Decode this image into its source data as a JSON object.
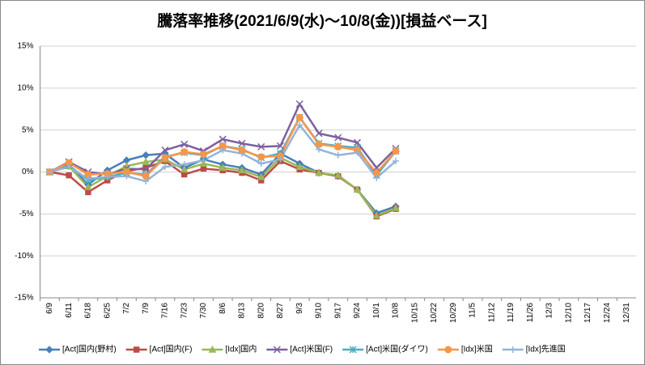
{
  "chart_data": {
    "type": "line",
    "title": "騰落率推移(2021/6/9(水)～10/8(金))[損益ベース]",
    "categories": [
      "6/9",
      "6/11",
      "6/18",
      "6/25",
      "7/2",
      "7/9",
      "7/16",
      "7/23",
      "7/30",
      "8/6",
      "8/13",
      "8/20",
      "8/27",
      "9/3",
      "9/10",
      "9/17",
      "9/24",
      "10/1",
      "10/8",
      "10/15",
      "10/22",
      "10/29",
      "11/5",
      "11/12",
      "11/19",
      "11/26",
      "12/3",
      "12/10",
      "12/17",
      "12/24",
      "12/31"
    ],
    "series": [
      {
        "name": "[Act]国内(野村)",
        "color": "#4a7ebb",
        "marker": "diamond",
        "values": [
          0,
          0.8,
          -1.5,
          0.2,
          1.4,
          2.0,
          2.2,
          0.5,
          1.5,
          0.9,
          0.5,
          -0.3,
          2.2,
          1.0,
          -0.1,
          -0.5,
          -2.1,
          -4.9,
          -4.1,
          null,
          null,
          null,
          null,
          null,
          null,
          null,
          null,
          null,
          null,
          null,
          null
        ]
      },
      {
        "name": "[Act]国内(F)",
        "color": "#be4b48",
        "marker": "square",
        "values": [
          0,
          -0.4,
          -2.4,
          -1.0,
          0.1,
          0.5,
          1.3,
          -0.3,
          0.4,
          0.2,
          -0.1,
          -1.0,
          1.3,
          0.3,
          -0.1,
          -0.5,
          -2.1,
          -5.3,
          -4.4,
          null,
          null,
          null,
          null,
          null,
          null,
          null,
          null,
          null,
          null,
          null,
          null
        ]
      },
      {
        "name": "[Idx]国内",
        "color": "#98b954",
        "marker": "triangle",
        "values": [
          0,
          0.7,
          -1.8,
          -0.5,
          0.7,
          1.2,
          1.5,
          0.3,
          1.0,
          0.5,
          0.2,
          -0.6,
          1.7,
          0.6,
          -0.1,
          -0.4,
          -2.1,
          -5.2,
          -4.3,
          null,
          null,
          null,
          null,
          null,
          null,
          null,
          null,
          null,
          null,
          null,
          null
        ]
      },
      {
        "name": "[Act]米国(F)",
        "color": "#7d60a0",
        "marker": "x",
        "values": [
          0,
          1.2,
          0.0,
          -0.3,
          0.4,
          0.3,
          2.6,
          3.3,
          2.5,
          3.9,
          3.4,
          3.0,
          3.1,
          8.1,
          4.6,
          4.1,
          3.5,
          0.5,
          2.8,
          null,
          null,
          null,
          null,
          null,
          null,
          null,
          null,
          null,
          null,
          null,
          null
        ]
      },
      {
        "name": "[Act]米国(ダイワ)",
        "color": "#4bacc6",
        "marker": "star",
        "values": [
          0,
          0.8,
          -1.0,
          -0.6,
          -0.1,
          -0.3,
          1.8,
          2.3,
          2.0,
          3.1,
          2.7,
          1.7,
          2.2,
          6.5,
          3.4,
          3.1,
          2.9,
          -0.4,
          2.5,
          null,
          null,
          null,
          null,
          null,
          null,
          null,
          null,
          null,
          null,
          null,
          null
        ]
      },
      {
        "name": "[Idx]米国",
        "color": "#f79646",
        "marker": "circle",
        "values": [
          0,
          1.1,
          -0.3,
          -0.2,
          0.0,
          -0.5,
          1.7,
          2.4,
          2.1,
          3.1,
          2.6,
          1.8,
          1.9,
          6.5,
          3.3,
          3.0,
          2.6,
          -0.1,
          2.5,
          null,
          null,
          null,
          null,
          null,
          null,
          null,
          null,
          null,
          null,
          null,
          null
        ]
      },
      {
        "name": "[Idx]先進国",
        "color": "#95b3d7",
        "marker": "plus",
        "values": [
          0,
          0.6,
          -0.8,
          -0.6,
          -0.5,
          -1.1,
          0.6,
          0.9,
          1.4,
          2.6,
          2.2,
          1.0,
          1.5,
          5.6,
          2.7,
          2.0,
          2.3,
          -0.7,
          1.3,
          null,
          null,
          null,
          null,
          null,
          null,
          null,
          null,
          null,
          null,
          null,
          null
        ]
      }
    ],
    "ylim": [
      -15,
      15
    ],
    "yticks": [
      {
        "value": -15,
        "label": "-15%"
      },
      {
        "value": -10,
        "label": "-10%"
      },
      {
        "value": -5,
        "label": "-5%"
      },
      {
        "value": 0,
        "label": "0%"
      },
      {
        "value": 5,
        "label": "5%"
      },
      {
        "value": 10,
        "label": "10%"
      },
      {
        "value": 15,
        "label": "15%"
      }
    ],
    "grid": true,
    "legend": "bottom"
  }
}
